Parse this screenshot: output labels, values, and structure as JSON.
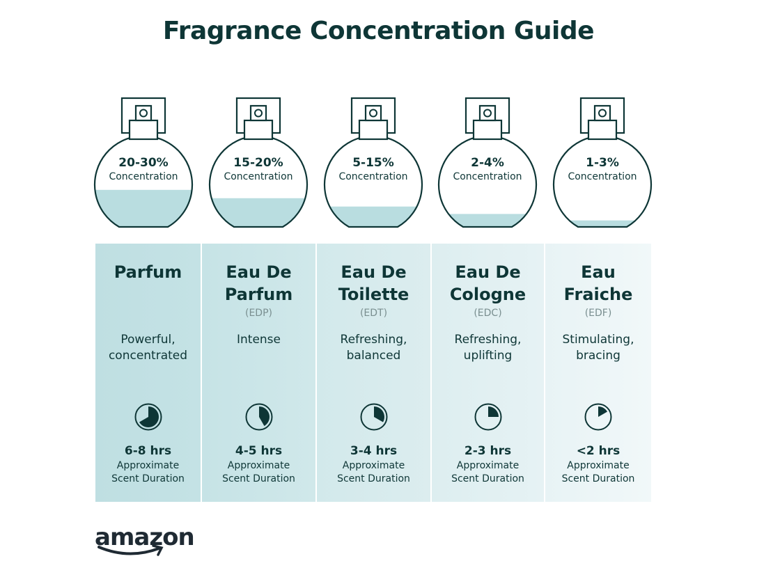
{
  "title": "Fragrance Concentration Guide",
  "colors": {
    "text": "#0e3636",
    "liquid": "#b9dde0",
    "muted": "#7a8f90"
  },
  "items": [
    {
      "concentration": "20-30%",
      "concentration_label": "Concentration",
      "liquid_level": 0.4,
      "name_line1": "Parfum",
      "name_line2": "",
      "abbr": "",
      "desc_line1": "Powerful,",
      "desc_line2": "concentrated",
      "duration": "6-8 hrs",
      "clock_fill": 0.667,
      "duration_line1": "Approximate",
      "duration_line2": "Scent Duration",
      "bg": [
        "#bfdfe2",
        "#c4e2e5"
      ]
    },
    {
      "concentration": "15-20%",
      "concentration_label": "Concentration",
      "liquid_level": 0.31,
      "name_line1": "Eau De",
      "name_line2": "Parfum",
      "abbr": "(EDP)",
      "desc_line1": "Intense",
      "desc_line2": "",
      "duration": "4-5 hrs",
      "clock_fill": 0.417,
      "duration_line1": "Approximate",
      "duration_line2": "Scent Duration",
      "bg": [
        "#c6e3e6",
        "#d0e8ea"
      ]
    },
    {
      "concentration": "5-15%",
      "concentration_label": "Concentration",
      "liquid_level": 0.22,
      "name_line1": "Eau De",
      "name_line2": "Toilette",
      "abbr": "(EDT)",
      "desc_line1": "Refreshing,",
      "desc_line2": "balanced",
      "duration": "3-4 hrs",
      "clock_fill": 0.333,
      "duration_line1": "Approximate",
      "duration_line2": "Scent Duration",
      "bg": [
        "#d2e9eb",
        "#dcedef"
      ]
    },
    {
      "concentration": "2-4%",
      "concentration_label": "Concentration",
      "liquid_level": 0.14,
      "name_line1": "Eau De",
      "name_line2": "Cologne",
      "abbr": "(EDC)",
      "desc_line1": "Refreshing,",
      "desc_line2": "uplifting",
      "duration": "2-3 hrs",
      "clock_fill": 0.25,
      "duration_line1": "Approximate",
      "duration_line2": "Scent Duration",
      "bg": [
        "#ddeef0",
        "#e6f2f4"
      ]
    },
    {
      "concentration": "1-3%",
      "concentration_label": "Concentration",
      "liquid_level": 0.07,
      "name_line1": "Eau",
      "name_line2": "Fraiche",
      "abbr": "(EDF)",
      "desc_line1": "Stimulating,",
      "desc_line2": "bracing",
      "duration": "<2 hrs",
      "clock_fill": 0.167,
      "duration_line1": "Approximate",
      "duration_line2": "Scent Duration",
      "bg": [
        "#e8f3f5",
        "#f1f8f9"
      ]
    }
  ],
  "logo": "amazon"
}
